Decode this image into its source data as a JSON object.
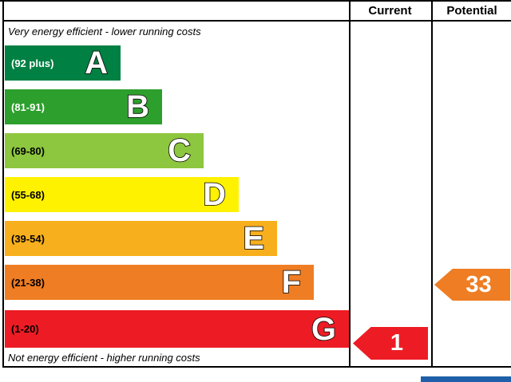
{
  "header": {
    "current_label": "Current",
    "potential_label": "Potential"
  },
  "notes": {
    "top": "Very energy efficient - lower running costs",
    "bottom": "Not energy efficient - higher running costs"
  },
  "bands": [
    {
      "letter": "A",
      "range": "(92 plus)",
      "color": "#008042",
      "text_color": "#ffffff"
    },
    {
      "letter": "B",
      "range": "(81-91)",
      "color": "#2d9f2d",
      "text_color": "#ffffff"
    },
    {
      "letter": "C",
      "range": "(69-80)",
      "color": "#8dc63f",
      "text_color": "#000000"
    },
    {
      "letter": "D",
      "range": "(55-68)",
      "color": "#fff200",
      "text_color": "#000000"
    },
    {
      "letter": "E",
      "range": "(39-54)",
      "color": "#f7af1d",
      "text_color": "#000000"
    },
    {
      "letter": "F",
      "range": "(21-38)",
      "color": "#ef7d23",
      "text_color": "#000000"
    },
    {
      "letter": "G",
      "range": "(1-20)",
      "color": "#ed1c24",
      "text_color": "#000000"
    }
  ],
  "ratings": {
    "current": {
      "value": "1",
      "band": "G",
      "color": "#ed1c24"
    },
    "potential": {
      "value": "33",
      "band": "F",
      "color": "#ef7d23"
    }
  },
  "footer": {
    "accent_color": "#1f5fa9"
  },
  "chart_data": {
    "type": "bar",
    "title": "Energy efficiency rating (EPC)",
    "categories": [
      "A",
      "B",
      "C",
      "D",
      "E",
      "F",
      "G"
    ],
    "band_ranges": [
      "92 plus",
      "81-91",
      "69-80",
      "55-68",
      "39-54",
      "21-38",
      "1-20"
    ],
    "band_colors": [
      "#008042",
      "#2d9f2d",
      "#8dc63f",
      "#fff200",
      "#f7af1d",
      "#ef7d23",
      "#ed1c24"
    ],
    "bar_lengths_relative": [
      145,
      197,
      249,
      293,
      341,
      387,
      431
    ],
    "columns": [
      "Current",
      "Potential"
    ],
    "annotations": [
      {
        "label": "Current",
        "value": 1,
        "band": "G"
      },
      {
        "label": "Potential",
        "value": 33,
        "band": "F"
      }
    ],
    "top_label": "Very energy efficient - lower running costs",
    "bottom_label": "Not energy efficient - higher running costs",
    "legend_position": "none",
    "grid": false
  }
}
